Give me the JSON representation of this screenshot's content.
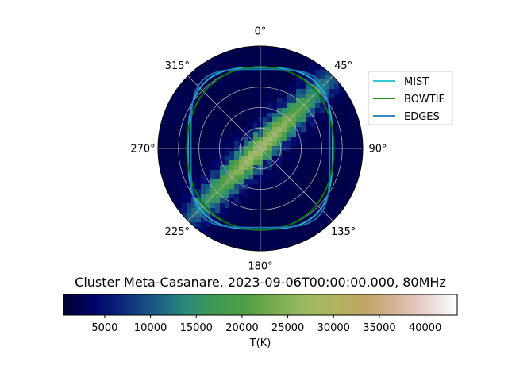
{
  "chart_data": {
    "type": "polar-skymap",
    "title": "Cluster Meta-Casanare, 2023-09-06T00:00:00.000, 80MHz",
    "angle_tick_labels": [
      "0°",
      "45°",
      "90°",
      "135°",
      "180°",
      "225°",
      "270°",
      "315°"
    ],
    "radial_grid": [
      18,
      36,
      54,
      72
    ],
    "grid": true,
    "legend_position": "top-right",
    "series": [
      {
        "name": "MIST",
        "color": "#17becf"
      },
      {
        "name": "BOWTIE",
        "color": "#008000"
      },
      {
        "name": "EDGES",
        "color": "#1f77b4"
      }
    ],
    "beam_contours": [
      {
        "series": "MIST",
        "half_width_deg": 63.5,
        "half_height_deg": 71.0,
        "squareness": 3.0
      },
      {
        "series": "BOWTIE",
        "half_width_deg": 64.5,
        "half_height_deg": 71.5,
        "squareness": 2.2
      },
      {
        "series": "EDGES",
        "half_width_deg": 61.0,
        "half_height_deg": 69.5,
        "squareness": 4.2
      }
    ],
    "galactic_band": {
      "from_azimuth_deg": 225,
      "to_azimuth_deg": 45,
      "peak_T": 26000
    },
    "background_T": 1500,
    "colorbar": {
      "label": "T(K)",
      "range": [
        500,
        43500
      ],
      "ticks": [
        5000,
        10000,
        15000,
        20000,
        25000,
        30000,
        35000,
        40000
      ],
      "tick_labels": [
        "5000",
        "10000",
        "15000",
        "20000",
        "25000",
        "30000",
        "35000",
        "40000"
      ],
      "colormap": [
        "#000033",
        "#00046b",
        "#0d2a7a",
        "#1a5a86",
        "#2a8a7a",
        "#3f9a55",
        "#4f9e45",
        "#7aab50",
        "#9cba60",
        "#b1b35e",
        "#c2a468",
        "#d5b49a",
        "#e8d4d0",
        "#ffffff"
      ]
    }
  }
}
